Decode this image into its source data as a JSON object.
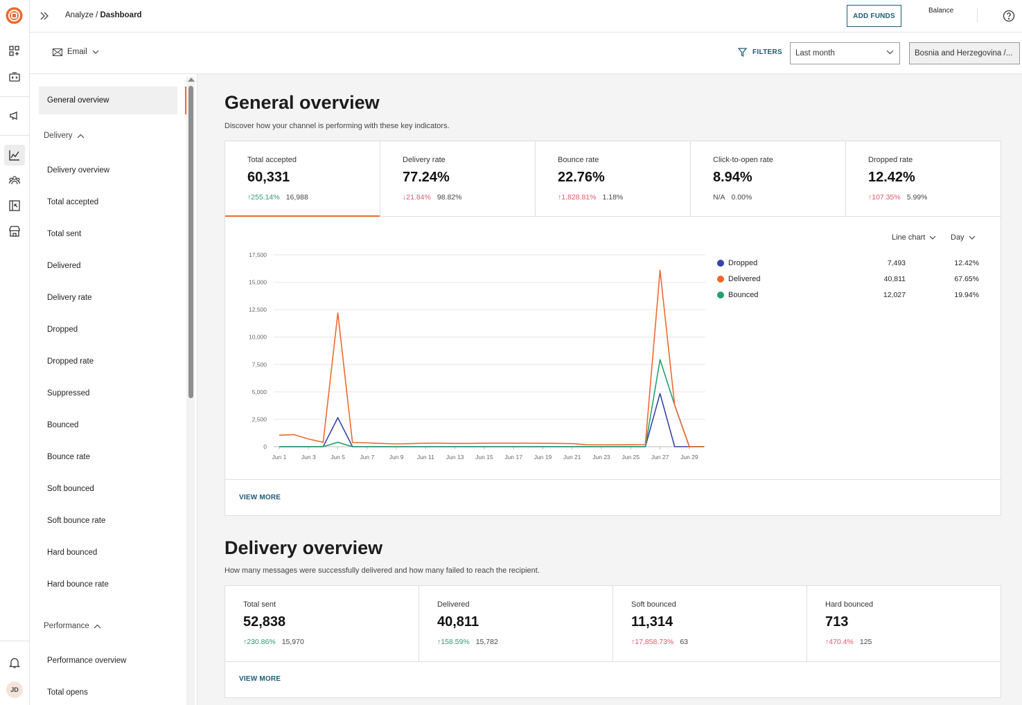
{
  "header": {
    "breadcrumb_parent": "Analyze / ",
    "breadcrumb_current": "Dashboard",
    "add_funds_label": "ADD FUNDS",
    "balance_label": "Balance"
  },
  "rail": {
    "avatar_initials": "JD"
  },
  "filterbar": {
    "channel_label": "Email",
    "filters_label": "FILTERS",
    "date_range_value": "Last month",
    "country_value": "Bosnia and Herzegovina /..."
  },
  "sidenav": {
    "active_item": "General overview",
    "group_delivery": "Delivery",
    "delivery_items": [
      "Delivery overview",
      "Total accepted",
      "Total sent",
      "Delivered",
      "Delivery rate",
      "Dropped",
      "Dropped rate",
      "Suppressed",
      "Bounced",
      "Bounce rate",
      "Soft bounced",
      "Soft bounce rate",
      "Hard bounced",
      "Hard bounce rate"
    ],
    "group_performance": "Performance",
    "performance_items": [
      "Performance overview",
      "Total opens"
    ]
  },
  "general": {
    "title": "General overview",
    "subtitle": "Discover how your channel is performing with these key indicators.",
    "kpis": [
      {
        "label": "Total accepted",
        "value": "60,331",
        "change": "255.14%",
        "direction": "up",
        "tone": "good",
        "previous": "16,988"
      },
      {
        "label": "Delivery rate",
        "value": "77.24%",
        "change": "21.84%",
        "direction": "down",
        "tone": "bad",
        "previous": "98.82%"
      },
      {
        "label": "Bounce rate",
        "value": "22.76%",
        "change": "1,828.81%",
        "direction": "up",
        "tone": "bad",
        "previous": "1.18%"
      },
      {
        "label": "Click-to-open rate",
        "value": "8.94%",
        "change": "N/A",
        "direction": "none",
        "tone": "neutral",
        "previous": "0.00%"
      },
      {
        "label": "Dropped rate",
        "value": "12.42%",
        "change": "107.35%",
        "direction": "up",
        "tone": "bad",
        "previous": "5.99%"
      }
    ],
    "chart_type_label": "Line chart",
    "granularity_label": "Day",
    "view_more_label": "VIEW MORE",
    "legend": [
      {
        "name": "Dropped",
        "count": "7,493",
        "percent": "12.42%",
        "color": "#3346a6"
      },
      {
        "name": "Delivered",
        "count": "40,811",
        "percent": "67.65%",
        "color": "#f0682d"
      },
      {
        "name": "Bounced",
        "count": "12,027",
        "percent": "19.94%",
        "color": "#25a06e"
      }
    ]
  },
  "chart_data": {
    "type": "line",
    "title": "",
    "xlabel": "",
    "ylabel": "",
    "ylim": [
      0,
      17500
    ],
    "y_ticks": [
      "17,500",
      "15,000",
      "12,500",
      "10,000",
      "7,500",
      "5,000",
      "2,500",
      "0"
    ],
    "x_ticks": [
      "Jun 1",
      "Jun 3",
      "Jun 5",
      "Jun 7",
      "Jun 9",
      "Jun 11",
      "Jun 13",
      "Jun 15",
      "Jun 17",
      "Jun 19",
      "Jun 21",
      "Jun 23",
      "Jun 25",
      "Jun 27",
      "Jun 29"
    ],
    "x": [
      "Jun 1",
      "Jun 2",
      "Jun 3",
      "Jun 4",
      "Jun 5",
      "Jun 6",
      "Jun 7",
      "Jun 8",
      "Jun 9",
      "Jun 10",
      "Jun 11",
      "Jun 12",
      "Jun 13",
      "Jun 14",
      "Jun 15",
      "Jun 16",
      "Jun 17",
      "Jun 18",
      "Jun 19",
      "Jun 20",
      "Jun 21",
      "Jun 22",
      "Jun 23",
      "Jun 24",
      "Jun 25",
      "Jun 26",
      "Jun 27",
      "Jun 28",
      "Jun 29",
      "Jun 30"
    ],
    "grid": true,
    "legend_position": "right",
    "series": [
      {
        "name": "Dropped",
        "color": "#3346a6",
        "values": [
          0,
          0,
          0,
          0,
          2650,
          0,
          0,
          0,
          0,
          0,
          0,
          0,
          0,
          0,
          0,
          0,
          0,
          0,
          0,
          0,
          0,
          0,
          0,
          0,
          0,
          0,
          4850,
          0,
          0,
          0
        ]
      },
      {
        "name": "Delivered",
        "color": "#f0682d",
        "values": [
          1050,
          1100,
          700,
          400,
          12200,
          380,
          350,
          300,
          250,
          280,
          320,
          320,
          300,
          300,
          320,
          320,
          320,
          320,
          310,
          300,
          280,
          180,
          170,
          170,
          180,
          190,
          16100,
          3800,
          0,
          0
        ]
      },
      {
        "name": "Bounced",
        "color": "#25a06e",
        "values": [
          0,
          0,
          0,
          0,
          400,
          0,
          0,
          0,
          0,
          0,
          0,
          0,
          0,
          0,
          0,
          0,
          0,
          0,
          0,
          0,
          0,
          0,
          0,
          0,
          0,
          0,
          7950,
          3800,
          0,
          0
        ]
      }
    ]
  },
  "delivery": {
    "title": "Delivery overview",
    "subtitle": "How many messages were successfully delivered and how many failed to reach the recipient.",
    "kpis": [
      {
        "label": "Total sent",
        "value": "52,838",
        "change": "230.86%",
        "direction": "up",
        "tone": "good",
        "previous": "15,970"
      },
      {
        "label": "Delivered",
        "value": "40,811",
        "change": "158.59%",
        "direction": "up",
        "tone": "good",
        "previous": "15,782"
      },
      {
        "label": "Soft bounced",
        "value": "11,314",
        "change": "17,858.73%",
        "direction": "up",
        "tone": "bad",
        "previous": "63"
      },
      {
        "label": "Hard bounced",
        "value": "713",
        "change": "470.4%",
        "direction": "up",
        "tone": "bad",
        "previous": "125"
      }
    ],
    "view_more_label": "VIEW MORE"
  }
}
